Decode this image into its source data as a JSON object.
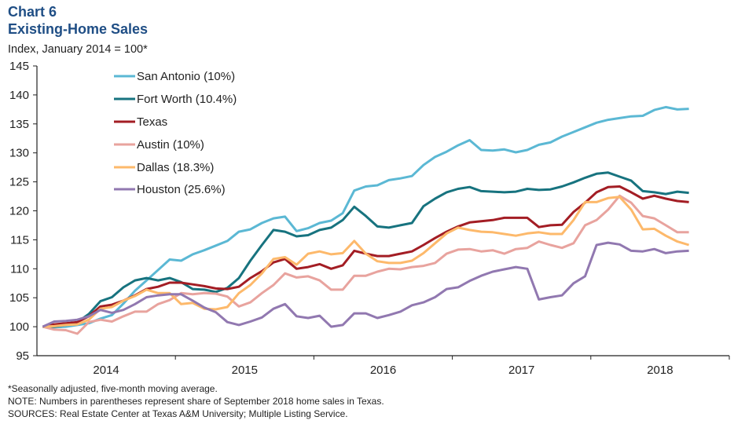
{
  "header": {
    "chart_number": "Chart 6",
    "title": "Existing-Home Sales",
    "subtitle": "Index, January 2014 = 100*"
  },
  "notes": [
    "*Seasonally adjusted, five-month  moving  average.",
    "NOTE: Numbers in parentheses represent share of September 2018 home sales in Texas.",
    "SOURCES: Real Estate Center at Texas A&M University;  Multiple Listing Service."
  ],
  "chart_data": {
    "type": "line",
    "title": "Existing-Home Sales",
    "ylabel": "Index, January 2014 = 100*",
    "ylim": [
      95,
      145
    ],
    "yticks": [
      95,
      100,
      105,
      110,
      115,
      120,
      125,
      130,
      135,
      140,
      145
    ],
    "xticklabels": [
      "2014",
      "2015",
      "2016",
      "2017",
      "2018"
    ],
    "grid": false,
    "legend": "top-left",
    "x": [
      "2014-01",
      "2014-02",
      "2014-03",
      "2014-04",
      "2014-05",
      "2014-06",
      "2014-07",
      "2014-08",
      "2014-09",
      "2014-10",
      "2014-11",
      "2014-12",
      "2015-01",
      "2015-02",
      "2015-03",
      "2015-04",
      "2015-05",
      "2015-06",
      "2015-07",
      "2015-08",
      "2015-09",
      "2015-10",
      "2015-11",
      "2015-12",
      "2016-01",
      "2016-02",
      "2016-03",
      "2016-04",
      "2016-05",
      "2016-06",
      "2016-07",
      "2016-08",
      "2016-09",
      "2016-10",
      "2016-11",
      "2016-12",
      "2017-01",
      "2017-02",
      "2017-03",
      "2017-04",
      "2017-05",
      "2017-06",
      "2017-07",
      "2017-08",
      "2017-09",
      "2017-10",
      "2017-11",
      "2017-12",
      "2018-01",
      "2018-02",
      "2018-03",
      "2018-04",
      "2018-05",
      "2018-06",
      "2018-07",
      "2018-08",
      "2018-09"
    ],
    "series": [
      {
        "name": "San Antonio (10%)",
        "color": "#5BB8D4",
        "values": [
          100,
          99.9,
          100,
          100.3,
          100.6,
          101.4,
          102.0,
          104.0,
          106.2,
          108.0,
          109.8,
          111.6,
          111.4,
          112.5,
          113.2,
          114.0,
          114.8,
          116.4,
          116.8,
          117.9,
          118.7,
          119.0,
          116.5,
          117.0,
          117.9,
          118.3,
          119.6,
          123.5,
          124.2,
          124.4,
          125.3,
          125.6,
          126.0,
          127.9,
          129.3,
          130.2,
          131.3,
          132.2,
          130.5,
          130.4,
          130.6,
          130.1,
          130.5,
          131.4,
          131.8,
          132.8,
          133.6,
          134.4,
          135.2,
          135.7,
          136.0,
          136.3,
          136.4,
          137.4,
          137.9,
          137.5,
          137.6
        ]
      },
      {
        "name": "Fort Worth (10.4%)",
        "color": "#17737F",
        "values": [
          100,
          100,
          100.3,
          100.8,
          102.2,
          104.4,
          105.1,
          106.8,
          108.0,
          108.4,
          108.0,
          108.4,
          107.7,
          106.5,
          106.4,
          106.0,
          106.7,
          108.4,
          111.4,
          114.1,
          116.7,
          116.4,
          115.6,
          115.8,
          116.7,
          117.1,
          118.4,
          120.7,
          119.1,
          117.3,
          117.1,
          117.5,
          117.9,
          120.8,
          122.1,
          123.2,
          123.8,
          124.1,
          123.4,
          123.3,
          123.2,
          123.3,
          123.8,
          123.6,
          123.7,
          124.2,
          124.9,
          125.7,
          126.4,
          126.6,
          125.9,
          125.2,
          123.4,
          123.2,
          122.9,
          123.3,
          123.1
        ]
      },
      {
        "name": "Texas",
        "color": "#A31D24",
        "values": [
          100,
          100.4,
          100.6,
          100.8,
          101.8,
          103.5,
          103.8,
          104.5,
          105.4,
          106.5,
          106.9,
          107.6,
          107.6,
          107.3,
          107.0,
          106.6,
          106.5,
          106.9,
          108.4,
          109.6,
          111.1,
          111.7,
          110.0,
          110.3,
          110.8,
          110.0,
          110.6,
          113.1,
          112.6,
          112.2,
          112.2,
          112.6,
          113.0,
          114.1,
          115.3,
          116.4,
          117.3,
          118.0,
          118.2,
          118.4,
          118.8,
          118.8,
          118.8,
          117.2,
          117.5,
          117.6,
          119.8,
          121.4,
          123.2,
          124.1,
          124.2,
          123.2,
          122.1,
          122.6,
          122.1,
          121.7,
          121.5
        ]
      },
      {
        "name": "Austin (10%)",
        "color": "#E8A39E",
        "values": [
          100,
          99.5,
          99.4,
          98.8,
          100.8,
          101.2,
          100.9,
          101.8,
          102.6,
          102.6,
          103.9,
          104.6,
          105.8,
          105.6,
          105.8,
          105.7,
          105.2,
          103.5,
          104.2,
          105.8,
          107.2,
          109.2,
          108.5,
          108.7,
          108.0,
          106.4,
          106.4,
          108.8,
          108.8,
          109.5,
          110.0,
          109.9,
          110.3,
          110.5,
          111.0,
          112.6,
          113.3,
          113.4,
          113.0,
          113.2,
          112.6,
          113.4,
          113.6,
          114.7,
          114.1,
          113.6,
          114.4,
          117.5,
          118.4,
          120.2,
          122.6,
          121.4,
          119.1,
          118.7,
          117.5,
          116.3,
          116.3
        ]
      },
      {
        "name": "Dallas (18.3%)",
        "color": "#FDB96B",
        "values": [
          100,
          100.1,
          100.3,
          100.4,
          101.2,
          103.1,
          103.4,
          104.5,
          105.3,
          106.4,
          105.8,
          105.8,
          103.9,
          104.1,
          103.1,
          103.0,
          103.4,
          105.8,
          107.2,
          109.2,
          111.7,
          112.0,
          110.7,
          112.6,
          113.0,
          112.5,
          112.7,
          114.8,
          112.6,
          111.3,
          111.0,
          111.0,
          111.4,
          112.7,
          114.4,
          116.1,
          117.1,
          116.7,
          116.4,
          116.3,
          116.0,
          115.7,
          116.1,
          116.3,
          116.0,
          116.0,
          118.4,
          121.5,
          121.5,
          122.2,
          122.4,
          120.2,
          116.8,
          116.9,
          115.7,
          114.7,
          114.1
        ]
      },
      {
        "name": "Houston (25.6%)",
        "color": "#9178B0",
        "values": [
          100,
          100.9,
          101.0,
          101.2,
          101.8,
          102.9,
          102.4,
          102.9,
          103.9,
          105.1,
          105.4,
          105.6,
          105.6,
          104.5,
          103.3,
          102.5,
          100.8,
          100.3,
          100.9,
          101.6,
          103.1,
          103.9,
          101.8,
          101.5,
          101.9,
          100.0,
          100.3,
          102.3,
          102.3,
          101.5,
          102.0,
          102.6,
          103.7,
          104.2,
          105.1,
          106.5,
          106.8,
          107.9,
          108.8,
          109.5,
          109.9,
          110.3,
          110.0,
          104.7,
          105.1,
          105.4,
          107.5,
          108.7,
          114.1,
          114.5,
          114.2,
          113.1,
          113.0,
          113.4,
          112.7,
          113.0,
          113.1
        ]
      }
    ]
  }
}
